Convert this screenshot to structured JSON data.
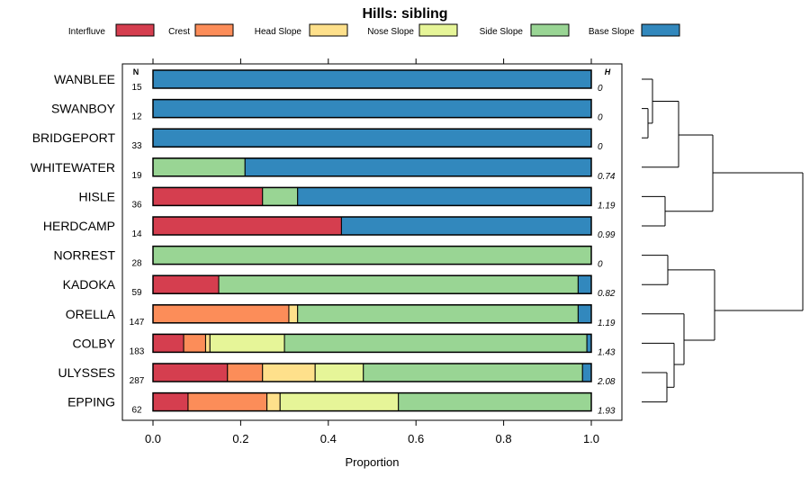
{
  "chart_data": {
    "type": "bar",
    "stacked": true,
    "orientation": "horizontal",
    "title": "Hills: sibling",
    "xlabel": "Proportion",
    "ylabel": "",
    "xlim": [
      0,
      1
    ],
    "xticks": [
      "0.0",
      "0.2",
      "0.4",
      "0.6",
      "0.8",
      "1.0"
    ],
    "n_header": "N",
    "h_header": "H",
    "legend_position": "top",
    "legend": [
      {
        "name": "Interfluve",
        "color": "#d53e4f"
      },
      {
        "name": "Crest",
        "color": "#fc8d59"
      },
      {
        "name": "Head Slope",
        "color": "#fee08b"
      },
      {
        "name": "Nose Slope",
        "color": "#e6f598"
      },
      {
        "name": "Side Slope",
        "color": "#99d594"
      },
      {
        "name": "Base Slope",
        "color": "#3288bd"
      }
    ],
    "categories": [
      "WANBLEE",
      "SWANBOY",
      "BRIDGEPORT",
      "WHITEWATER",
      "HISLE",
      "HERDCAMP",
      "NORREST",
      "KADOKA",
      "ORELLA",
      "COLBY",
      "ULYSSES",
      "EPPING"
    ],
    "n": [
      "15",
      "12",
      "33",
      "19",
      "36",
      "14",
      "28",
      "59",
      "147",
      "183",
      "287",
      "62"
    ],
    "h": [
      "0",
      "0",
      "0",
      "0.74",
      "1.19",
      "0.99",
      "0",
      "0.82",
      "1.19",
      "1.43",
      "2.08",
      "1.93"
    ],
    "series": [
      {
        "name": "Interfluve",
        "values": [
          0,
          0,
          0,
          0,
          0.25,
          0.43,
          0,
          0.15,
          0,
          0.07,
          0.17,
          0.08
        ]
      },
      {
        "name": "Crest",
        "values": [
          0,
          0,
          0,
          0,
          0,
          0,
          0,
          0,
          0.31,
          0.05,
          0.08,
          0.18
        ]
      },
      {
        "name": "Head Slope",
        "values": [
          0,
          0,
          0,
          0,
          0,
          0,
          0,
          0,
          0.02,
          0.01,
          0.12,
          0.03
        ]
      },
      {
        "name": "Nose Slope",
        "values": [
          0,
          0,
          0,
          0,
          0,
          0,
          0,
          0,
          0,
          0.17,
          0.11,
          0.27
        ]
      },
      {
        "name": "Side Slope",
        "values": [
          0,
          0,
          0,
          0.21,
          0.08,
          0,
          1,
          0.82,
          0.64,
          0.69,
          0.5,
          0.44
        ]
      },
      {
        "name": "Base Slope",
        "values": [
          1,
          1,
          1,
          0.79,
          0.67,
          0.57,
          0,
          0.03,
          0.03,
          0.01,
          0.02,
          0
        ]
      }
    ]
  }
}
